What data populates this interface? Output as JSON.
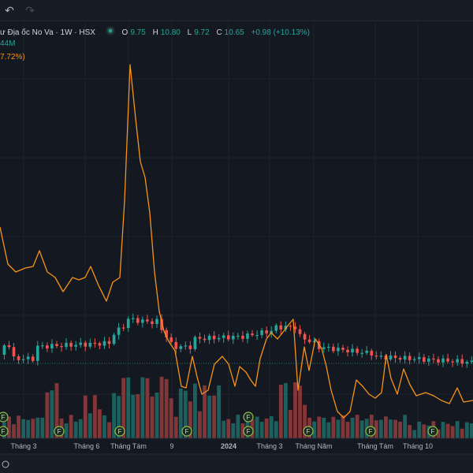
{
  "toolbar": {
    "undo_icon": "undo-icon",
    "redo_icon": "redo-icon"
  },
  "legend": {
    "symbol_text": "ư Địa ốc No Va · 1W · HSX",
    "open_label": "O",
    "open": "9.75",
    "high_label": "H",
    "high": "10.80",
    "low_label": "L",
    "low": "9.72",
    "close_label": "C",
    "close": "10.65",
    "change": "+0.98 (+10.13%)",
    "volume_partial": "44M",
    "indicator_partial": "7.72%)"
  },
  "colors": {
    "up": "#26a69a",
    "down": "#ef5350",
    "line": "#f7931a",
    "background": "#141821"
  },
  "events_marker_label": "F",
  "x_axis_labels": [
    "Tháng 3",
    "Tháng 6",
    "Tháng Tám",
    "9",
    "2024",
    "Tháng 3",
    "Tháng Năm",
    "Tháng Tám",
    "Tháng 10"
  ],
  "chart_data": {
    "type": "candlestick_volume_line",
    "timeframe": "1W",
    "x_tick_labels": [
      "Tháng 3",
      "Tháng 6",
      "Tháng Tám",
      "9",
      "2024",
      "Tháng 3",
      "Tháng Năm",
      "Tháng Tám",
      "Tháng 10"
    ],
    "last_bar": {
      "open": 9.75,
      "high": 10.8,
      "low": 9.72,
      "close": 10.65,
      "change": 0.98,
      "change_pct": 10.13
    }
  }
}
